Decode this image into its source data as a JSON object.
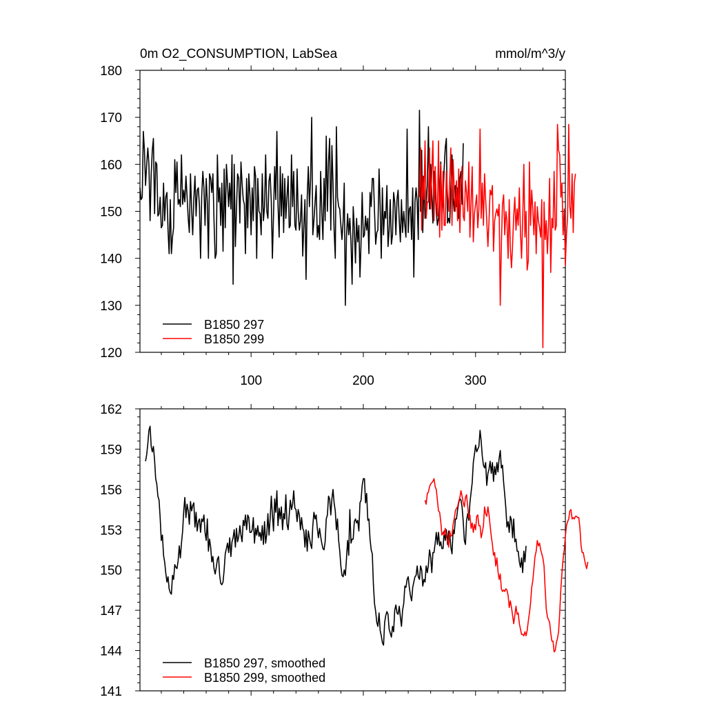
{
  "colors": {
    "run_297": "#000000",
    "run_299": "#ff0000"
  },
  "chart_data": [
    {
      "type": "line",
      "title": "0m O2_CONSUMPTION, LabSea",
      "units": "mmol/m^3/y",
      "xlabel": "",
      "ylabel": "",
      "xlim": [
        1,
        380
      ],
      "ylim": [
        120,
        180
      ],
      "x_ticks": [
        100,
        200,
        300
      ],
      "x_tick_labels": [
        "100",
        "200",
        "300"
      ],
      "y_ticks": [
        120,
        130,
        140,
        150,
        160,
        170,
        180
      ],
      "y_tick_labels": [
        "120",
        "130",
        "140",
        "150",
        "160",
        "170",
        "180"
      ],
      "legend_position": "bottom-left",
      "series": [
        {
          "name": "B1850 297",
          "color": "#000000",
          "x_start": 1,
          "x_step": 1,
          "values": [
            155.0,
            152.5,
            153.0,
            167.0,
            163.0,
            155.5,
            160.0,
            163.5,
            160.0,
            148.0,
            158.0,
            163.0,
            165.5,
            149.5,
            160.5,
            160.0,
            149.0,
            149.5,
            153.0,
            146.5,
            147.0,
            156.0,
            148.0,
            153.0,
            154.0,
            146.0,
            141.0,
            152.5,
            141.0,
            144.5,
            146.5,
            161.0,
            154.0,
            160.5,
            151.5,
            152.5,
            151.0,
            162.0,
            151.5,
            154.5,
            152.0,
            157.5,
            153.0,
            148.5,
            145.5,
            158.0,
            150.5,
            145.0,
            152.5,
            157.5,
            149.0,
            154.5,
            155.0,
            151.0,
            140.0,
            153.0,
            158.5,
            155.0,
            147.0,
            157.0,
            152.0,
            140.0,
            158.0,
            157.0,
            154.0,
            158.0,
            148.0,
            140.0,
            141.0,
            162.0,
            152.0,
            155.0,
            147.0,
            156.0,
            141.5,
            159.0,
            146.5,
            160.0,
            156.0,
            151.0,
            156.0,
            150.5,
            162.0,
            134.5,
            160.0,
            142.5,
            150.5,
            158.0,
            157.0,
            147.5,
            160.5,
            156.0,
            152.5,
            151.5,
            141.0,
            157.0,
            146.5,
            158.0,
            153.5,
            145.0,
            155.0,
            148.0,
            159.5,
            157.5,
            140.0,
            157.0,
            150.0,
            149.5,
            145.0,
            158.0,
            148.0,
            151.0,
            162.0,
            150.0,
            148.5,
            156.5,
            158.0,
            152.0,
            140.0,
            149.0,
            159.5,
            152.5,
            167.0,
            151.5,
            144.5,
            159.5,
            149.0,
            158.0,
            145.5,
            157.0,
            148.5,
            153.0,
            157.5,
            146.5,
            147.0,
            162.0,
            151.0,
            158.5,
            147.0,
            146.0,
            159.0,
            150.0,
            146.0,
            148.0,
            153.5,
            140.5,
            147.0,
            152.5,
            135.5,
            153.0,
            159.5,
            151.0,
            157.0,
            170.0,
            145.0,
            148.0,
            152.0,
            155.5,
            144.5,
            147.0,
            144.0,
            158.5,
            150.0,
            144.0,
            157.0,
            148.0,
            166.0,
            150.0,
            160.5,
            165.5,
            146.0,
            164.0,
            156.0,
            146.0,
            140.0,
            168.0,
            153.0,
            151.0,
            150.5,
            147.0,
            144.0,
            148.0,
            156.0,
            130.0,
            144.5,
            149.5,
            145.0,
            148.5,
            143.5,
            134.5,
            151.0,
            146.5,
            139.0,
            148.5,
            143.5,
            147.0,
            136.0,
            143.5,
            154.0,
            144.5,
            145.0,
            149.0,
            146.0,
            148.5,
            141.0,
            154.0,
            151.0,
            157.0,
            157.0,
            150.0,
            143.0,
            145.5,
            146.0,
            159.0,
            151.0,
            140.0,
            155.0,
            145.0,
            150.0,
            148.5,
            155.5,
            142.5,
            146.0,
            152.5,
            143.0,
            145.0,
            154.0,
            152.0,
            145.0,
            152.5,
            154.5,
            148.0,
            143.5,
            152.5,
            145.5,
            150.0,
            147.0,
            144.5,
            167.5,
            145.5,
            150.5,
            151.0,
            144.0,
            155.0,
            136.0,
            152.0,
            155.0,
            152.0,
            144.0,
            171.5,
            150.0,
            163.0,
            145.5,
            157.5,
            148.5,
            151.0,
            155.5,
            168.0,
            150.5,
            160.0,
            153.5,
            147.5,
            158.5,
            155.0,
            150.0,
            147.0,
            148.5,
            153.5,
            160.5,
            149.0,
            152.0,
            159.0,
            163.5,
            165.5,
            147.5,
            148.5,
            147.5,
            155.0,
            162.0,
            153.0,
            150.0,
            155.5,
            151.0,
            155.0,
            148.5,
            157.0,
            158.5,
            151.5,
            164.5
          ]
        },
        {
          "name": "B1850 299",
          "color": "#ff0000",
          "x_start": 250,
          "x_step": 1,
          "values": [
            153.0,
            163.5,
            146.0,
            157.5,
            152.5,
            165.0,
            148.5,
            152.0,
            152.0,
            163.5,
            150.5,
            158.5,
            165.0,
            148.0,
            159.5,
            152.0,
            149.0,
            165.0,
            144.5,
            160.0,
            146.0,
            158.5,
            147.0,
            147.0,
            158.5,
            153.5,
            150.0,
            157.0,
            163.5,
            147.0,
            161.0,
            155.0,
            150.0,
            156.5,
            148.0,
            159.0,
            145.5,
            155.5,
            159.5,
            149.0,
            148.0,
            156.5,
            154.0,
            150.0,
            160.5,
            144.5,
            152.0,
            159.5,
            143.5,
            149.5,
            151.5,
            153.5,
            146.5,
            150.5,
            167.5,
            148.5,
            156.0,
            147.0,
            158.0,
            152.5,
            148.0,
            142.5,
            148.0,
            154.5,
            153.5,
            155.5,
            141.5,
            148.0,
            149.5,
            150.5,
            149.0,
            151.5,
            130.0,
            143.0,
            151.5,
            153.5,
            145.0,
            150.0,
            148.0,
            140.0,
            152.5,
            142.0,
            138.0,
            143.0,
            149.0,
            153.0,
            146.0,
            150.5,
            147.0,
            155.0,
            145.5,
            140.0,
            148.0,
            160.0,
            144.5,
            150.0,
            137.5,
            139.5,
            160.5,
            147.0,
            154.5,
            150.5,
            145.0,
            152.0,
            141.0,
            151.0,
            148.0,
            146.5,
            144.5,
            152.5,
            121.0,
            152.0,
            144.0,
            148.0,
            141.0,
            147.0,
            157.0,
            137.0,
            148.5,
            146.5,
            158.5,
            146.0,
            147.0,
            168.5,
            163.0,
            162.0,
            153.0,
            156.0,
            145.0,
            150.5,
            138.5,
            145.0,
            149.0,
            168.5,
            151.0,
            148.5,
            158.0,
            145.5,
            156.0,
            158.0
          ]
        }
      ]
    },
    {
      "type": "line",
      "title": "",
      "xlabel": "",
      "ylabel": "",
      "xlim": [
        1,
        380
      ],
      "ylim": [
        141,
        162
      ],
      "x_ticks": [
        100,
        200,
        300
      ],
      "y_ticks": [
        141,
        144,
        147,
        150,
        153,
        156,
        159,
        162
      ],
      "y_tick_labels": [
        "141",
        "144",
        "147",
        "150",
        "153",
        "156",
        "159",
        "162"
      ],
      "legend_position": "bottom-left",
      "series": [
        {
          "name": "B1850 297, smoothed",
          "color": "#000000",
          "x_start": 6,
          "x_step": 1,
          "values": [
            158.1,
            158.6,
            159.4,
            160.4,
            160.7,
            159.2,
            158.8,
            159.2,
            158.2,
            156.8,
            156.4,
            155.5,
            155.2,
            153.9,
            152.2,
            152.6,
            151.1,
            150.6,
            149.8,
            149.1,
            149.5,
            148.6,
            148.3,
            148.2,
            149.6,
            149.3,
            150.4,
            150.2,
            150.1,
            150.7,
            151.8,
            150.9,
            152.0,
            152.9,
            154.4,
            155.4,
            153.9,
            154.9,
            154.4,
            153.4,
            155.1,
            154.4,
            154.8,
            155.0,
            153.2,
            154.3,
            152.9,
            153.6,
            153.8,
            152.8,
            153.8,
            153.6,
            154.1,
            152.8,
            152.2,
            153.8,
            151.4,
            152.3,
            151.7,
            150.6,
            151.0,
            150.1,
            149.7,
            150.2,
            150.8,
            151.0,
            149.6,
            149.0,
            148.9,
            149.1,
            150.0,
            151.2,
            151.6,
            152.0,
            151.3,
            152.4,
            151.0,
            152.1,
            152.4,
            153.0,
            151.7,
            153.1,
            152.1,
            152.5,
            153.3,
            152.6,
            152.1,
            153.7,
            153.3,
            154.1,
            153.0,
            154.1,
            153.9,
            152.8,
            152.8,
            153.0,
            153.9,
            152.0,
            153.1,
            152.6,
            153.3,
            152.5,
            152.8,
            152.2,
            153.3,
            151.9,
            153.6,
            152.0,
            152.7,
            154.2,
            152.6,
            153.8,
            155.5,
            154.1,
            152.9,
            155.3,
            154.3,
            155.9,
            153.3,
            154.6,
            153.8,
            154.7,
            153.0,
            154.2,
            153.8,
            155.6,
            153.4,
            153.0,
            154.1,
            155.2,
            154.5,
            154.9,
            155.9,
            154.6,
            154.5,
            153.6,
            154.5,
            154.1,
            153.0,
            153.9,
            153.1,
            152.9,
            151.7,
            153.0,
            151.4,
            152.9,
            152.4,
            151.9,
            151.6,
            153.3,
            154.3,
            153.8,
            154.1,
            153.1,
            152.4,
            153.1,
            152.5,
            152.0,
            151.6,
            151.5,
            152.1,
            153.8,
            154.1,
            155.5,
            155.3,
            154.1,
            155.3,
            156.0,
            155.0,
            154.4,
            153.0,
            153.8,
            152.2,
            151.4,
            150.3,
            149.6,
            149.5,
            150.0,
            149.6,
            150.8,
            152.2,
            151.1,
            154.5,
            152.0,
            152.3,
            152.3,
            153.6,
            153.8,
            153.5,
            153.7,
            152.9,
            155.0,
            155.2,
            156.3,
            156.8,
            156.8,
            155.0,
            155.7,
            153.7,
            153.8,
            152.3,
            151.5,
            151.2,
            148.9,
            147.5,
            146.9,
            146.1,
            145.8,
            146.8,
            145.5,
            145.1,
            144.6,
            144.4,
            146.1,
            146.6,
            146.9,
            146.7,
            145.6,
            145.3,
            145.0,
            145.8,
            145.4,
            147.0,
            147.4,
            146.8,
            146.7,
            147.3,
            146.5,
            145.8,
            147.0,
            147.5,
            148.8,
            148.7,
            149.3,
            149.5,
            148.7,
            148.1,
            147.7,
            148.7,
            149.1,
            149.5,
            149.6,
            150.3,
            149.5,
            149.3,
            150.3,
            150.0,
            148.8,
            149.3,
            149.1,
            150.3,
            149.8,
            150.4,
            151.5,
            151.0,
            149.8,
            151.3,
            151.3,
            152.0,
            152.8,
            151.9,
            152.8,
            151.8,
            152.1,
            151.6,
            151.6,
            152.9,
            152.2,
            153.0,
            151.9,
            152.9,
            152.7,
            151.7,
            151.2,
            153.0,
            152.7,
            153.8,
            153.8,
            154.5,
            155.0,
            155.3,
            155.2,
            154.7,
            153.6,
            152.2,
            151.9,
            153.7,
            154.2,
            153.7,
            155.0,
            155.8,
            156.5,
            158.0,
            158.6,
            159.3,
            158.8,
            159.0,
            159.2,
            160.4,
            159.6,
            158.5,
            157.8,
            157.6,
            158.0,
            156.3,
            157.2,
            157.5,
            158.1,
            157.2,
            158.0,
            156.6,
            157.7,
            157.1,
            158.0,
            157.3,
            158.3,
            158.9,
            157.6,
            157.8,
            156.5,
            155.6,
            154.6,
            153.2,
            153.6,
            152.8,
            154.0,
            153.7,
            152.4,
            153.8,
            152.1,
            152.3,
            151.4,
            151.4,
            150.6,
            150.2,
            150.9,
            149.8,
            151.4,
            150.6,
            151.8
          ]
        },
        {
          "name": "B1850 299, smoothed",
          "color": "#ff0000",
          "x_start": 255,
          "x_step": 1,
          "values": [
            155.2,
            154.9,
            155.7,
            155.8,
            156.2,
            156.4,
            156.5,
            156.6,
            156.8,
            156.2,
            156.0,
            155.2,
            154.4,
            154.3,
            153.6,
            152.6,
            152.8,
            152.6,
            153.1,
            152.5,
            152.2,
            151.7,
            152.9,
            152.5,
            152.6,
            153.4,
            153.8,
            154.4,
            154.6,
            154.7,
            155.1,
            155.4,
            155.9,
            155.5,
            155.0,
            154.7,
            155.4,
            155.6,
            154.7,
            153.9,
            154.1,
            153.1,
            153.5,
            152.8,
            153.4,
            153.0,
            154.0,
            154.1,
            153.3,
            153.3,
            152.4,
            152.8,
            153.3,
            154.7,
            154.2,
            154.0,
            154.7,
            154.1,
            153.3,
            152.5,
            151.9,
            151.1,
            151.3,
            150.3,
            150.9,
            149.9,
            149.3,
            149.7,
            148.6,
            148.4,
            148.5,
            148.4,
            148.6,
            148.5,
            148.1,
            147.2,
            147.7,
            147.2,
            146.6,
            146.0,
            146.6,
            147.3,
            146.7,
            146.8,
            146.0,
            145.6,
            145.2,
            145.2,
            145.1,
            145.4,
            145.1,
            145.5,
            146.2,
            146.8,
            147.5,
            148.7,
            149.2,
            150.1,
            151.0,
            151.4,
            152.2,
            151.8,
            152.0,
            151.5,
            151.2,
            150.9,
            150.3,
            148.6,
            147.1,
            146.5,
            146.3,
            146.1,
            145.3,
            144.7,
            144.7,
            143.9,
            144.0,
            144.6,
            144.9,
            145.4,
            146.9,
            148.6,
            149.8,
            150.8,
            151.5,
            152.5,
            153.3,
            153.6,
            153.8,
            154.4,
            154.5,
            153.8,
            153.9,
            153.8,
            154.0,
            154.0,
            153.9,
            153.9,
            153.1,
            151.8,
            151.3,
            151.3,
            150.8,
            150.4,
            150.1,
            150.6
          ]
        }
      ]
    }
  ]
}
